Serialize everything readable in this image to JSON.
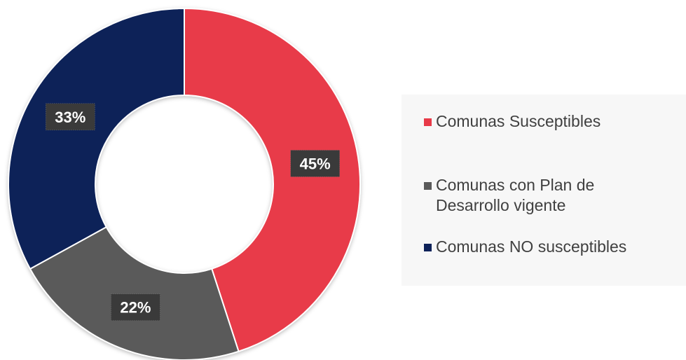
{
  "chart_data": {
    "type": "pie",
    "subtype": "donut",
    "title": "",
    "categories": [
      "Comunas Susceptibles",
      "Comunas con Plan de Desarrollo vigente",
      "Comunas NO susceptibles"
    ],
    "values": [
      45,
      22,
      33
    ],
    "value_labels": [
      "45%",
      "22%",
      "33%"
    ],
    "colors": [
      "#e83a48",
      "#5a5a5a",
      "#0e2259"
    ],
    "legend_position": "right",
    "legend_swatch_shape": "square"
  },
  "legend": {
    "items": [
      {
        "label_lines": [
          "Comunas Susceptibles"
        ],
        "color": "#e83a48"
      },
      {
        "label_lines": [
          "Comunas con Plan de",
          "Desarrollo vigente"
        ],
        "color": "#5a5a5a"
      },
      {
        "label_lines": [
          "Comunas NO susceptibles"
        ],
        "color": "#0e2259"
      }
    ]
  }
}
